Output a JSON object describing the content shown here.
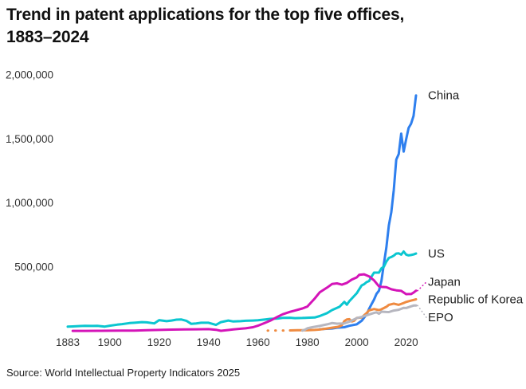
{
  "title": {
    "line1": "Trend in patent applications for the top five offices,",
    "line2": "1883–2024"
  },
  "source": "Source: World Intellectual Property Indicators 2025",
  "chart_data": {
    "type": "line",
    "title": "Trend in patent applications for the top five offices, 1883–2024",
    "xlabel": "",
    "ylabel": "",
    "grid": false,
    "legend_position": "end-of-line labels at right",
    "x_axis": {
      "range": [
        1883,
        2024
      ],
      "ticks": [
        {
          "value": 1883,
          "label": "1883"
        },
        {
          "value": 1900,
          "label": "1900"
        },
        {
          "value": 1920,
          "label": "1920"
        },
        {
          "value": 1940,
          "label": "1940"
        },
        {
          "value": 1960,
          "label": "1960"
        },
        {
          "value": 1980,
          "label": "1980"
        },
        {
          "value": 2000,
          "label": "2000"
        },
        {
          "value": 2020,
          "label": "2020"
        }
      ]
    },
    "y_axis": {
      "range": [
        0,
        2000000
      ],
      "ticks": [
        {
          "value": 500000,
          "label": "500,000"
        },
        {
          "value": 1000000,
          "label": "1,000,000"
        },
        {
          "value": 1500000,
          "label": "1,500,000"
        },
        {
          "value": 2000000,
          "label": "2,000,000"
        }
      ]
    },
    "series": [
      {
        "name": "China",
        "slug": "china",
        "color": "#2e7fee",
        "label_dy": 0,
        "leader": false,
        "points": [
          [
            1985,
            14000
          ],
          [
            1987,
            17000
          ],
          [
            1990,
            20000
          ],
          [
            1992,
            26000
          ],
          [
            1995,
            30000
          ],
          [
            1997,
            41000
          ],
          [
            2000,
            52000
          ],
          [
            2002,
            80000
          ],
          [
            2004,
            130000
          ],
          [
            2005,
            173000
          ],
          [
            2006,
            210000
          ],
          [
            2007,
            245000
          ],
          [
            2008,
            290000
          ],
          [
            2009,
            315000
          ],
          [
            2010,
            391000
          ],
          [
            2011,
            526000
          ],
          [
            2012,
            653000
          ],
          [
            2013,
            825000
          ],
          [
            2014,
            928000
          ],
          [
            2015,
            1102000
          ],
          [
            2016,
            1339000
          ],
          [
            2017,
            1382000
          ],
          [
            2018,
            1542000
          ],
          [
            2019,
            1401000
          ],
          [
            2020,
            1497000
          ],
          [
            2021,
            1586000
          ],
          [
            2022,
            1619000
          ],
          [
            2023,
            1680000
          ],
          [
            2024,
            1840000
          ]
        ]
      },
      {
        "name": "US",
        "slug": "us",
        "color": "#0bc6d0",
        "label_dy": 0,
        "leader": false,
        "points": [
          [
            1883,
            34000
          ],
          [
            1885,
            36000
          ],
          [
            1888,
            39000
          ],
          [
            1890,
            41000
          ],
          [
            1893,
            40000
          ],
          [
            1895,
            41000
          ],
          [
            1898,
            35000
          ],
          [
            1900,
            42000
          ],
          [
            1903,
            50000
          ],
          [
            1905,
            54000
          ],
          [
            1908,
            62000
          ],
          [
            1910,
            65000
          ],
          [
            1913,
            70000
          ],
          [
            1915,
            68000
          ],
          [
            1918,
            60000
          ],
          [
            1920,
            85000
          ],
          [
            1923,
            77000
          ],
          [
            1925,
            82000
          ],
          [
            1927,
            89000
          ],
          [
            1929,
            90000
          ],
          [
            1931,
            80000
          ],
          [
            1933,
            56000
          ],
          [
            1935,
            60000
          ],
          [
            1937,
            65000
          ],
          [
            1940,
            65000
          ],
          [
            1943,
            48000
          ],
          [
            1945,
            70000
          ],
          [
            1948,
            82000
          ],
          [
            1950,
            75000
          ],
          [
            1953,
            77000
          ],
          [
            1955,
            80000
          ],
          [
            1958,
            82000
          ],
          [
            1960,
            84000
          ],
          [
            1963,
            90000
          ],
          [
            1965,
            95000
          ],
          [
            1968,
            98000
          ],
          [
            1970,
            103000
          ],
          [
            1973,
            104000
          ],
          [
            1975,
            101000
          ],
          [
            1978,
            102000
          ],
          [
            1980,
            104000
          ],
          [
            1983,
            106000
          ],
          [
            1985,
            117000
          ],
          [
            1988,
            140000
          ],
          [
            1990,
            164000
          ],
          [
            1993,
            189000
          ],
          [
            1995,
            228000
          ],
          [
            1996,
            206000
          ],
          [
            1997,
            233000
          ],
          [
            2000,
            295000
          ],
          [
            2001,
            326000
          ],
          [
            2002,
            356000
          ],
          [
            2003,
            366000
          ],
          [
            2004,
            382000
          ],
          [
            2005,
            390000
          ],
          [
            2006,
            426000
          ],
          [
            2007,
            456000
          ],
          [
            2008,
            456000
          ],
          [
            2009,
            456000
          ],
          [
            2010,
            490000
          ],
          [
            2011,
            503000
          ],
          [
            2012,
            543000
          ],
          [
            2013,
            571000
          ],
          [
            2014,
            578000
          ],
          [
            2015,
            589000
          ],
          [
            2016,
            605000
          ],
          [
            2017,
            607000
          ],
          [
            2018,
            597000
          ],
          [
            2019,
            621000
          ],
          [
            2020,
            597000
          ],
          [
            2021,
            591000
          ],
          [
            2022,
            594000
          ],
          [
            2023,
            598000
          ],
          [
            2024,
            605000
          ]
        ]
      },
      {
        "name": "Japan",
        "slug": "japan",
        "color": "#d414b8",
        "label_dy": -11,
        "leader": true,
        "points": [
          [
            1885,
            1000
          ],
          [
            1890,
            1500
          ],
          [
            1895,
            2000
          ],
          [
            1900,
            2500
          ],
          [
            1905,
            3000
          ],
          [
            1910,
            4000
          ],
          [
            1915,
            6000
          ],
          [
            1920,
            9000
          ],
          [
            1925,
            11000
          ],
          [
            1930,
            13000
          ],
          [
            1935,
            14000
          ],
          [
            1940,
            15000
          ],
          [
            1943,
            10000
          ],
          [
            1945,
            2000
          ],
          [
            1948,
            8000
          ],
          [
            1950,
            13000
          ],
          [
            1953,
            18000
          ],
          [
            1955,
            21000
          ],
          [
            1958,
            30000
          ],
          [
            1960,
            42000
          ],
          [
            1963,
            65000
          ],
          [
            1965,
            81000
          ],
          [
            1968,
            112000
          ],
          [
            1970,
            131000
          ],
          [
            1973,
            150000
          ],
          [
            1975,
            160000
          ],
          [
            1978,
            176000
          ],
          [
            1980,
            191000
          ],
          [
            1983,
            254000
          ],
          [
            1985,
            302000
          ],
          [
            1988,
            339000
          ],
          [
            1990,
            367000
          ],
          [
            1992,
            372000
          ],
          [
            1994,
            362000
          ],
          [
            1996,
            376000
          ],
          [
            1998,
            402000
          ],
          [
            2000,
            419000
          ],
          [
            2001,
            439000
          ],
          [
            2003,
            443000
          ],
          [
            2005,
            427000
          ],
          [
            2007,
            396000
          ],
          [
            2009,
            349000
          ],
          [
            2010,
            345000
          ],
          [
            2012,
            343000
          ],
          [
            2014,
            326000
          ],
          [
            2016,
            318000
          ],
          [
            2018,
            314000
          ],
          [
            2020,
            288000
          ],
          [
            2021,
            289000
          ],
          [
            2022,
            289000
          ],
          [
            2023,
            300000
          ],
          [
            2024,
            315000
          ]
        ]
      },
      {
        "name": "Republic of Korea",
        "slug": "republic-of-korea",
        "color": "#ef8b41",
        "label_dy": 0,
        "leader": false,
        "dashed_before": 1973,
        "points": [
          [
            1964,
            4000
          ],
          [
            1968,
            4500
          ],
          [
            1971,
            4000
          ],
          [
            1973,
            5000
          ],
          [
            1976,
            6000
          ],
          [
            1980,
            7000
          ],
          [
            1983,
            9000
          ],
          [
            1985,
            12000
          ],
          [
            1988,
            20000
          ],
          [
            1990,
            26000
          ],
          [
            1992,
            31000
          ],
          [
            1993,
            36000
          ],
          [
            1994,
            46000
          ],
          [
            1995,
            78000
          ],
          [
            1996,
            90000
          ],
          [
            1997,
            93000
          ],
          [
            1998,
            75000
          ],
          [
            1999,
            81000
          ],
          [
            2000,
            102000
          ],
          [
            2002,
            106000
          ],
          [
            2004,
            140000
          ],
          [
            2005,
            161000
          ],
          [
            2007,
            172000
          ],
          [
            2009,
            164000
          ],
          [
            2010,
            170000
          ],
          [
            2012,
            189000
          ],
          [
            2013,
            205000
          ],
          [
            2015,
            214000
          ],
          [
            2017,
            205000
          ],
          [
            2019,
            219000
          ],
          [
            2020,
            227000
          ],
          [
            2022,
            238000
          ],
          [
            2023,
            243000
          ],
          [
            2024,
            248000
          ]
        ]
      },
      {
        "name": "EPO",
        "slug": "epo",
        "color": "#b6b6bf",
        "label_dy": 15,
        "leader": true,
        "points": [
          [
            1978,
            4000
          ],
          [
            1979,
            10000
          ],
          [
            1980,
            21000
          ],
          [
            1982,
            30000
          ],
          [
            1985,
            40000
          ],
          [
            1988,
            52000
          ],
          [
            1990,
            62000
          ],
          [
            1992,
            58000
          ],
          [
            1995,
            60000
          ],
          [
            1997,
            73000
          ],
          [
            2000,
            101000
          ],
          [
            2002,
            110000
          ],
          [
            2005,
            129000
          ],
          [
            2007,
            141000
          ],
          [
            2008,
            146000
          ],
          [
            2009,
            135000
          ],
          [
            2010,
            151000
          ],
          [
            2012,
            149000
          ],
          [
            2013,
            148000
          ],
          [
            2015,
            160000
          ],
          [
            2017,
            166000
          ],
          [
            2019,
            181000
          ],
          [
            2020,
            180000
          ],
          [
            2022,
            193000
          ],
          [
            2023,
            199000
          ],
          [
            2024,
            200000
          ]
        ]
      }
    ]
  }
}
